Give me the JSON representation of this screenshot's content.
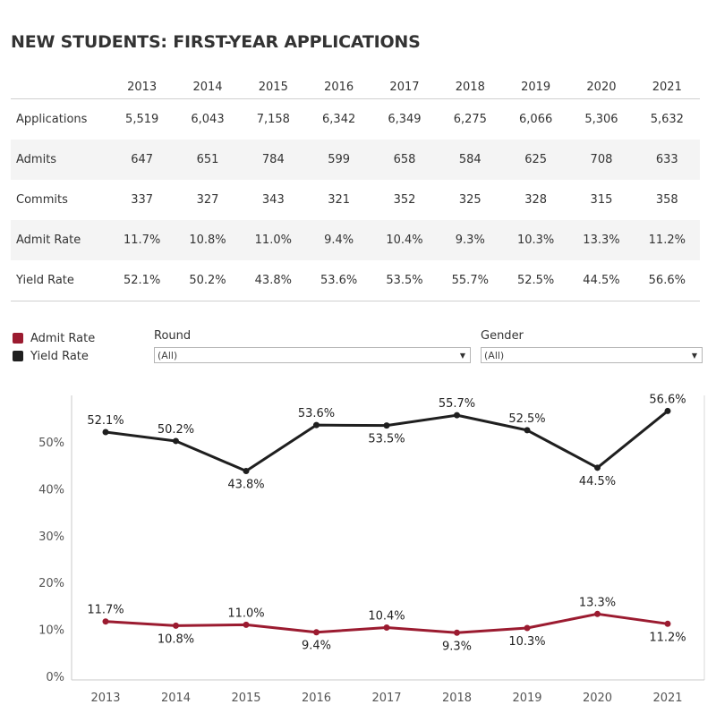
{
  "title": "NEW STUDENTS: FIRST-YEAR APPLICATIONS",
  "table": {
    "years": [
      "2013",
      "2014",
      "2015",
      "2016",
      "2017",
      "2018",
      "2019",
      "2020",
      "2021"
    ],
    "rows": [
      {
        "label": "Applications",
        "values": [
          "5,519",
          "6,043",
          "7,158",
          "6,342",
          "6,349",
          "6,275",
          "6,066",
          "5,306",
          "5,632"
        ]
      },
      {
        "label": "Admits",
        "values": [
          "647",
          "651",
          "784",
          "599",
          "658",
          "584",
          "625",
          "708",
          "633"
        ]
      },
      {
        "label": "Commits",
        "values": [
          "337",
          "327",
          "343",
          "321",
          "352",
          "325",
          "328",
          "315",
          "358"
        ]
      },
      {
        "label": "Admit Rate",
        "values": [
          "11.7%",
          "10.8%",
          "11.0%",
          "9.4%",
          "10.4%",
          "9.3%",
          "10.3%",
          "13.3%",
          "11.2%"
        ]
      },
      {
        "label": "Yield Rate",
        "values": [
          "52.1%",
          "50.2%",
          "43.8%",
          "53.6%",
          "53.5%",
          "55.7%",
          "52.5%",
          "44.5%",
          "56.6%"
        ]
      }
    ]
  },
  "legend": [
    {
      "label": "Admit Rate",
      "color": "#9b1b30"
    },
    {
      "label": "Yield Rate",
      "color": "#1f1f1f"
    }
  ],
  "filters": {
    "round": {
      "label": "Round",
      "value": "(All)"
    },
    "gender": {
      "label": "Gender",
      "value": "(All)"
    }
  },
  "chart_data": {
    "type": "line",
    "x": [
      "2013",
      "2014",
      "2015",
      "2016",
      "2017",
      "2018",
      "2019",
      "2020",
      "2021"
    ],
    "series": [
      {
        "name": "Admit Rate",
        "color": "#9b1b30",
        "values": [
          11.7,
          10.8,
          11.0,
          9.4,
          10.4,
          9.3,
          10.3,
          13.3,
          11.2
        ],
        "labels": [
          "11.7%",
          "10.8%",
          "11.0%",
          "9.4%",
          "10.4%",
          "9.3%",
          "10.3%",
          "13.3%",
          "11.2%"
        ]
      },
      {
        "name": "Yield Rate",
        "color": "#1f1f1f",
        "values": [
          52.1,
          50.2,
          43.8,
          53.6,
          53.5,
          55.7,
          52.5,
          44.5,
          56.6
        ],
        "labels": [
          "52.1%",
          "50.2%",
          "43.8%",
          "53.6%",
          "53.5%",
          "55.7%",
          "52.5%",
          "44.5%",
          "56.6%"
        ]
      }
    ],
    "yticks": [
      0,
      10,
      20,
      30,
      40,
      50
    ],
    "ytick_labels": [
      "0%",
      "10%",
      "20%",
      "30%",
      "40%",
      "50%"
    ],
    "ylim": [
      0,
      60
    ],
    "grid": false,
    "legend_position": "top-left"
  }
}
